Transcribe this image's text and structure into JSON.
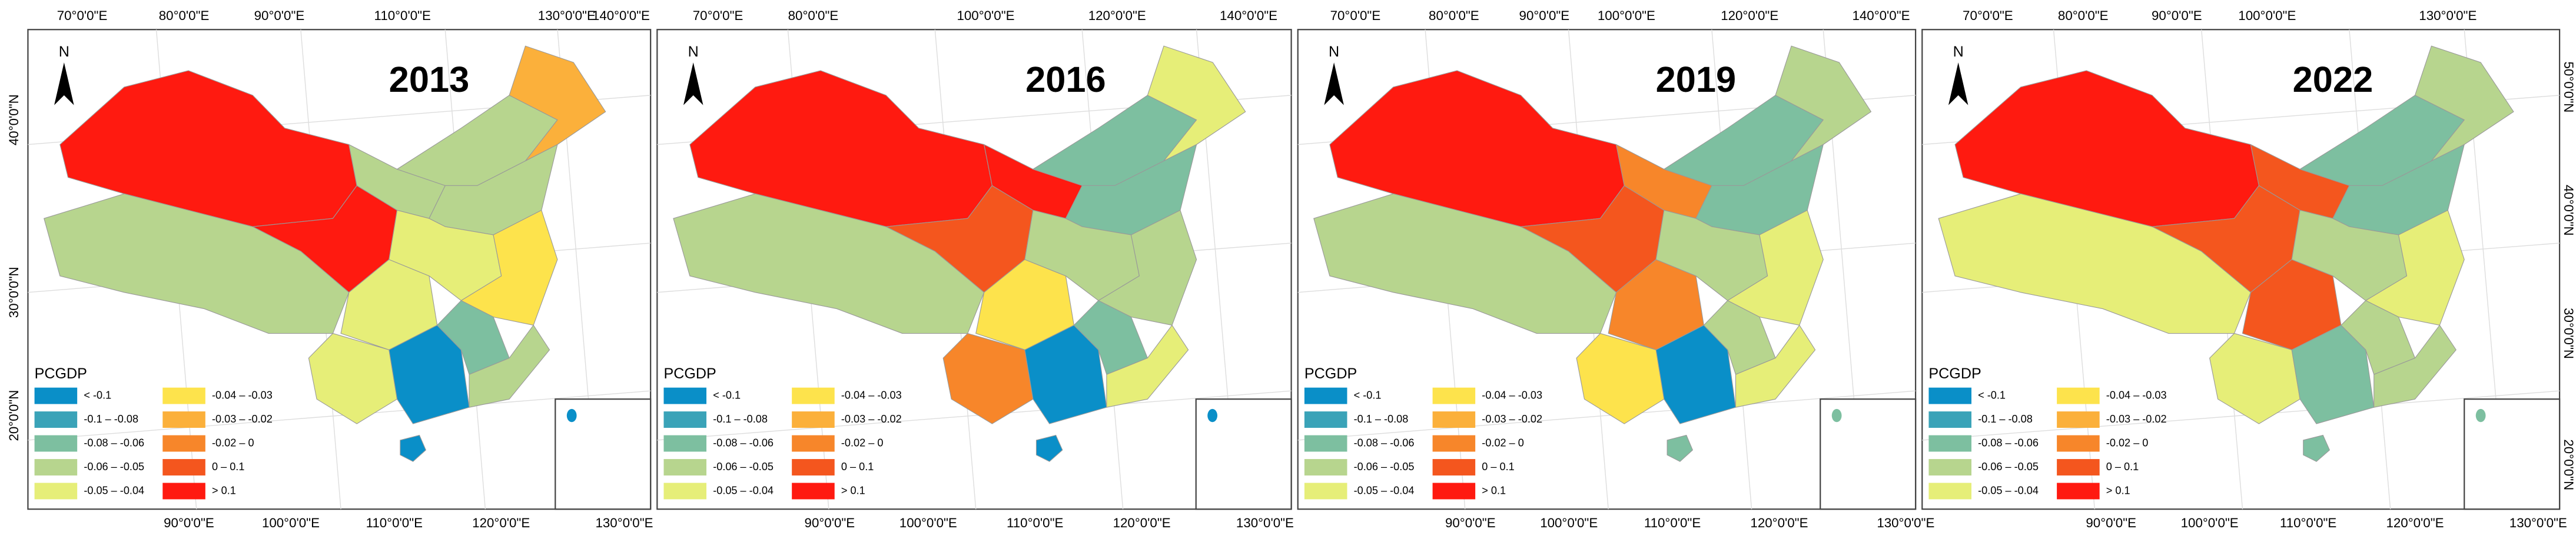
{
  "panels": [
    {
      "year": "2013",
      "top_labels": [
        "70°0'0\"E",
        "80°0'0\"E",
        "90°0'0\"E",
        "110°0'0\"E",
        "130°0'0\"E",
        "140°0'0\"E"
      ],
      "bottom_labels": [
        "90°0'0\"E",
        "100°0'0\"E",
        "110°0'0\"E",
        "120°0'0\"E",
        "130°0'0\"E"
      ],
      "left_labels": [
        "40°0'0\"N",
        "30°0'0\"N",
        "20°0'0\"N"
      ]
    },
    {
      "year": "2016",
      "top_labels": [
        "70°0'0\"E",
        "80°0'0\"E",
        "100°0'0\"E",
        "120°0'0\"E",
        "140°0'0\"E"
      ],
      "bottom_labels": [
        "90°0'0\"E",
        "100°0'0\"E",
        "110°0'0\"E",
        "120°0'0\"E",
        "130°0'0\"E"
      ]
    },
    {
      "year": "2019",
      "top_labels": [
        "70°0'0\"E",
        "80°0'0\"E",
        "90°0'0\"E",
        "100°0'0\"E",
        "120°0'0\"E",
        "140°0'0\"E"
      ],
      "bottom_labels": [
        "90°0'0\"E",
        "100°0'0\"E",
        "110°0'0\"E",
        "120°0'0\"E",
        "130°0'0\"E"
      ]
    },
    {
      "year": "2022",
      "top_labels": [
        "70°0'0\"E",
        "80°0'0\"E",
        "90°0'0\"E",
        "100°0'0\"E",
        "130°0'0\"E"
      ],
      "bottom_labels": [
        "90°0'0\"E",
        "100°0'0\"E",
        "110°0'0\"E",
        "120°0'0\"E",
        "130°0'0\"E"
      ],
      "right_labels": [
        "50°0'0\"N",
        "40°0'0\"N",
        "30°0'0\"N",
        "20°0'0\"N"
      ]
    }
  ],
  "legend": {
    "title": "PCGDP",
    "north": "N",
    "items": [
      {
        "label": "< -0.1",
        "color": "#0a8fc8"
      },
      {
        "label": "-0.1 – -0.08",
        "color": "#3aa3b8"
      },
      {
        "label": "-0.08 – -0.06",
        "color": "#7dbfa0"
      },
      {
        "label": "-0.06 – -0.05",
        "color": "#b7d58e"
      },
      {
        "label": "-0.05 – -0.04",
        "color": "#e6ee78"
      },
      {
        "label": "-0.04 – -0.03",
        "color": "#fde34c"
      },
      {
        "label": "-0.03 – -0.02",
        "color": "#fbb03b"
      },
      {
        "label": "-0.02 – 0",
        "color": "#f7862a"
      },
      {
        "label": "0 – 0.1",
        "color": "#f4561e"
      },
      {
        "label": "> 0.1",
        "color": "#ff1a10"
      }
    ]
  }
}
